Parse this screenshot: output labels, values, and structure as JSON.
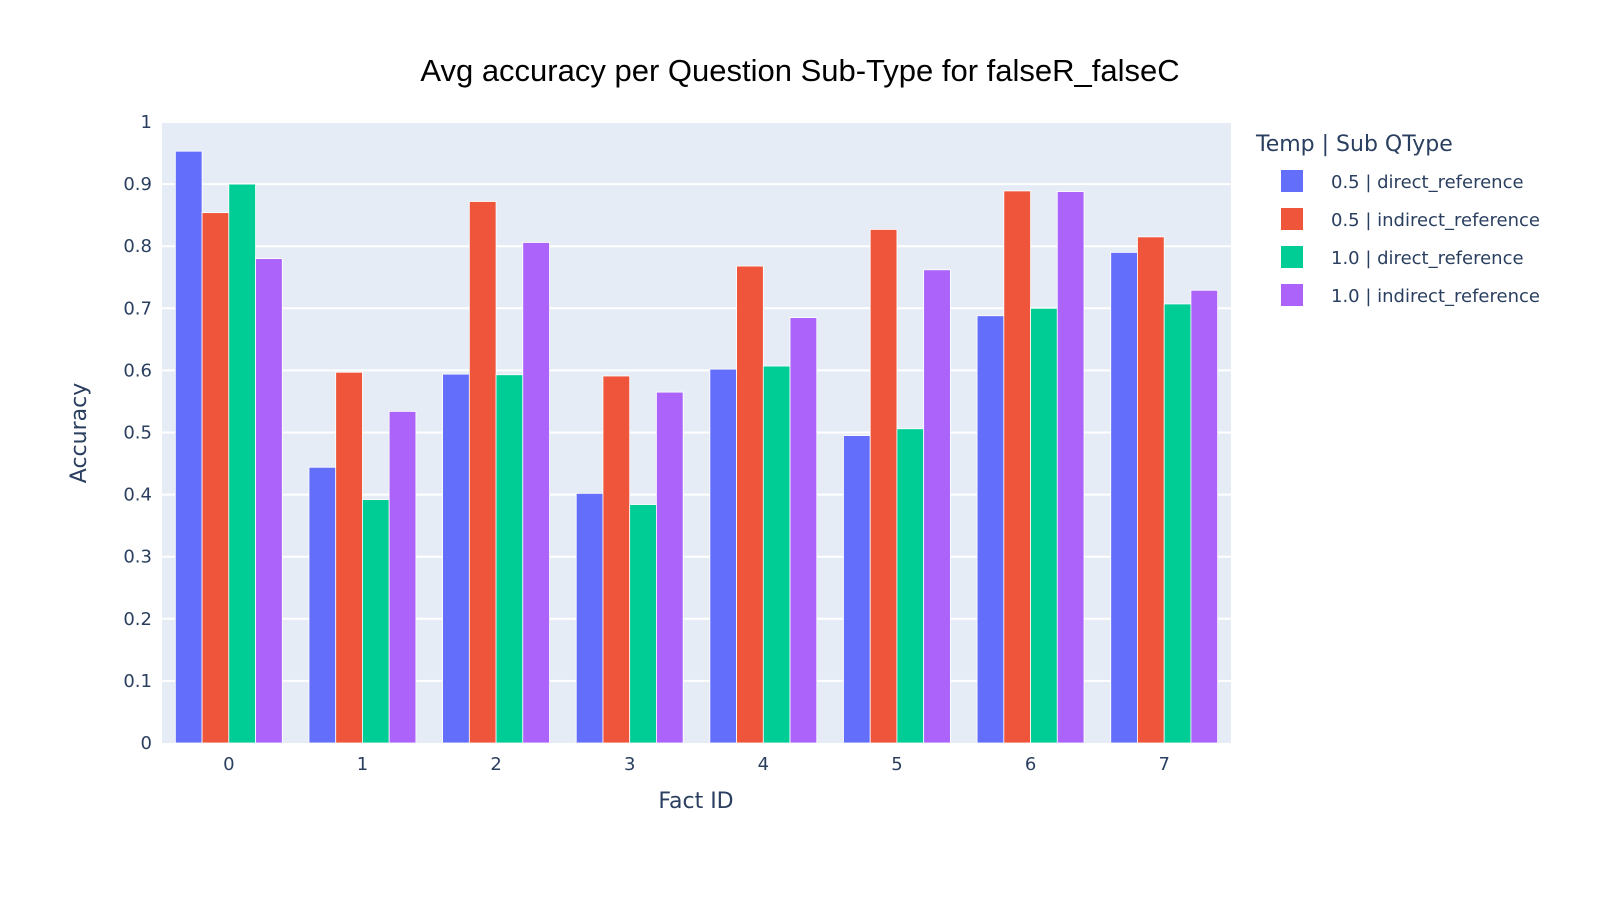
{
  "chart_data": {
    "type": "bar",
    "title": "Avg accuracy per Question Sub-Type for falseR_falseC",
    "xlabel": "Fact ID",
    "ylabel": "Accuracy",
    "categories": [
      "0",
      "1",
      "2",
      "3",
      "4",
      "5",
      "6",
      "7"
    ],
    "ylim": [
      0,
      1
    ],
    "yticks": [
      "0",
      "0.1",
      "0.2",
      "0.3",
      "0.4",
      "0.5",
      "0.6",
      "0.7",
      "0.8",
      "0.9",
      "1"
    ],
    "legend_title": "Temp | Sub QType",
    "legend_placement": "right",
    "grid": true,
    "plot_background": "#e5ecf6",
    "series": [
      {
        "name": "0.5 | direct_reference",
        "color": "#636efa",
        "values": [
          0.953,
          0.444,
          0.594,
          0.402,
          0.602,
          0.495,
          0.688,
          0.79
        ]
      },
      {
        "name": "0.5 | indirect_reference",
        "color": "#ef553b",
        "values": [
          0.854,
          0.597,
          0.872,
          0.591,
          0.768,
          0.827,
          0.889,
          0.815
        ]
      },
      {
        "name": "1.0 | direct_reference",
        "color": "#00cc96",
        "values": [
          0.9,
          0.392,
          0.593,
          0.384,
          0.607,
          0.506,
          0.7,
          0.707
        ]
      },
      {
        "name": "1.0 | indirect_reference",
        "color": "#ab63fa",
        "values": [
          0.78,
          0.534,
          0.806,
          0.565,
          0.685,
          0.762,
          0.888,
          0.729
        ]
      }
    ]
  }
}
